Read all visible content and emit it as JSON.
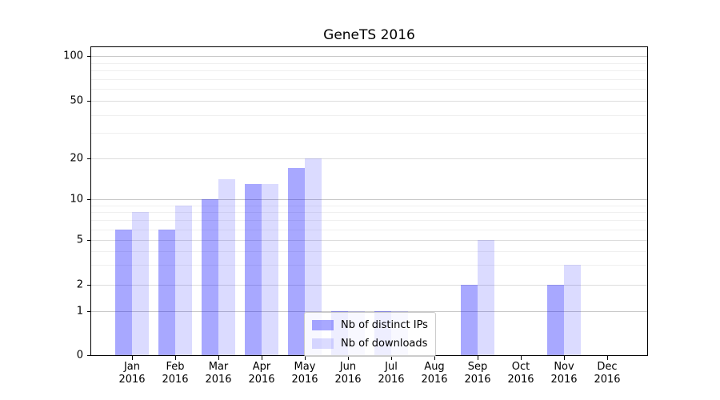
{
  "title": "GeneTS 2016",
  "chart_data": {
    "type": "bar",
    "title": "GeneTS 2016",
    "categories": [
      "Jan",
      "Feb",
      "Mar",
      "Apr",
      "May",
      "Jun",
      "Jul",
      "Aug",
      "Sep",
      "Oct",
      "Nov",
      "Dec"
    ],
    "category_year": "2016",
    "series": [
      {
        "name": "Nb of distinct IPs",
        "color": "rgba(0,0,255,0.34)",
        "values": [
          6,
          6,
          10,
          13,
          17,
          1,
          1,
          0,
          2,
          0,
          2,
          0
        ]
      },
      {
        "name": "Nb of downloads",
        "color": "rgba(0,0,255,0.14)",
        "values": [
          8,
          9,
          14,
          13,
          20,
          1,
          1,
          0,
          5,
          0,
          3,
          0
        ]
      }
    ],
    "yscale": "log-like",
    "yticks": [
      0,
      1,
      2,
      5,
      10,
      20,
      50,
      100
    ],
    "minor_gridlines": [
      3,
      4,
      6,
      7,
      8,
      9,
      30,
      40,
      60,
      70,
      80,
      90
    ],
    "ylim": [
      0,
      130
    ],
    "xlabel": "",
    "ylabel": "",
    "grid": "both",
    "legend_position": "lower-center-inside"
  },
  "colors": {
    "grid_major_decade": "#c8c8c8",
    "grid_major_other": "#dcdcdc",
    "grid_minor": "#efefef",
    "axis": "#000000",
    "background": "#ffffff"
  }
}
